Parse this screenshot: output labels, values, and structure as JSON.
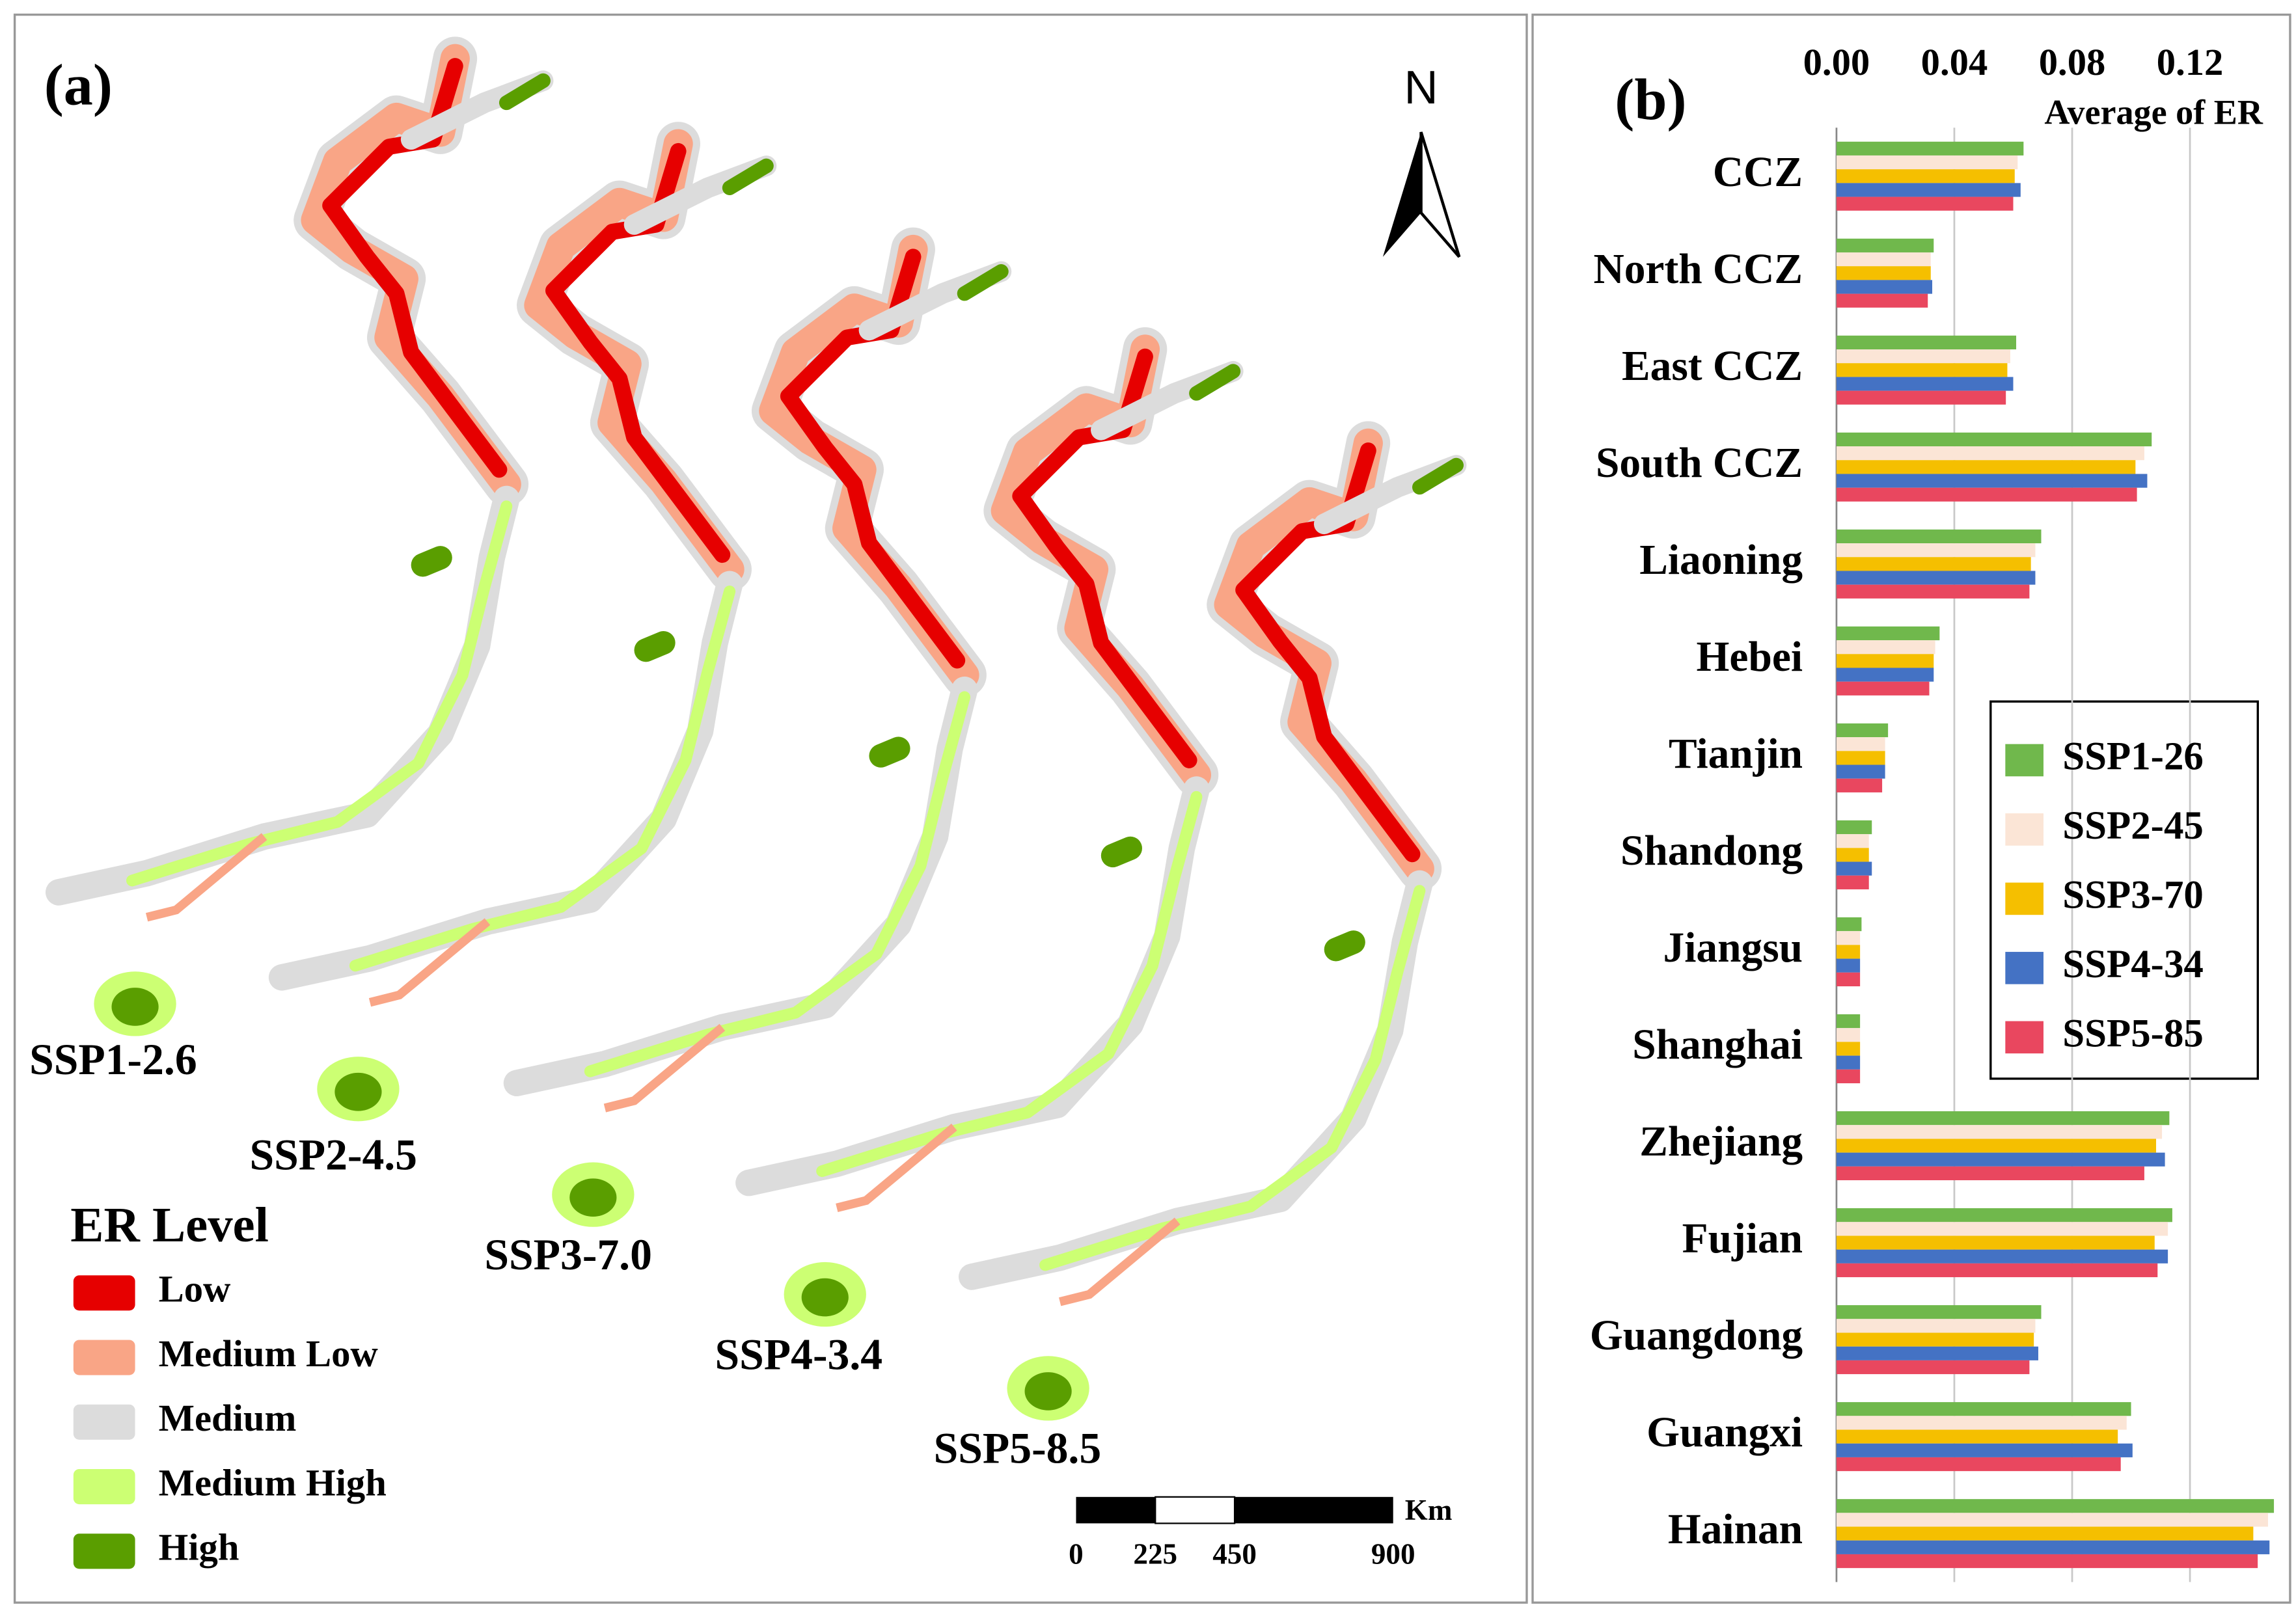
{
  "map": {
    "panel_label": "(a)",
    "north": "N",
    "legend": {
      "title": "ER  Level",
      "items": [
        {
          "label": "Low",
          "color": "#e60000"
        },
        {
          "label": "Medium Low",
          "color": "#f9a586"
        },
        {
          "label": "Medium",
          "color": "#dcdcdc"
        },
        {
          "label": "Medium High",
          "color": "#ccff73"
        },
        {
          "label": "High",
          "color": "#5a9e00"
        }
      ]
    },
    "scenarios": [
      "SSP1-2.6",
      "SSP2-4.5",
      "SSP3-7.0",
      "SSP4-3.4",
      "SSP5-8.5"
    ],
    "scale_bar": {
      "unit": "Km",
      "labels": [
        "0",
        "225",
        "450",
        "900"
      ]
    }
  },
  "chart_data": {
    "type": "hbar",
    "title": "(b)",
    "x_label": "Average of ER",
    "categories": [
      "CCZ",
      "North CCZ",
      "East CCZ",
      "South CCZ",
      "Liaoning",
      "Hebei",
      "Tianjin",
      "Shandong",
      "Jiangsu",
      "Shanghai",
      "Zhejiang",
      "Fujian",
      "Guangdong",
      "Guangxi",
      "Hainan"
    ],
    "series": [
      {
        "name": "SSP1-26",
        "color": "#70b84c",
        "values": [
          0.0635,
          0.033,
          0.061,
          0.107,
          0.0695,
          0.035,
          0.0175,
          0.012,
          0.0085,
          0.008,
          0.113,
          0.114,
          0.0695,
          0.1,
          0.1485
        ]
      },
      {
        "name": "SSP2-45",
        "color": "#fbe5d6",
        "values": [
          0.0615,
          0.032,
          0.059,
          0.1045,
          0.0675,
          0.0335,
          0.0165,
          0.011,
          0.008,
          0.008,
          0.1105,
          0.1125,
          0.0675,
          0.0985,
          0.1465
        ]
      },
      {
        "name": "SSP3-70",
        "color": "#f5bf00",
        "values": [
          0.0605,
          0.032,
          0.058,
          0.1015,
          0.066,
          0.033,
          0.0165,
          0.011,
          0.008,
          0.008,
          0.1085,
          0.108,
          0.067,
          0.0955,
          0.1415
        ]
      },
      {
        "name": "SSP4-34",
        "color": "#4472c4",
        "values": [
          0.0625,
          0.0325,
          0.06,
          0.1055,
          0.0675,
          0.033,
          0.0165,
          0.012,
          0.008,
          0.008,
          0.1115,
          0.1125,
          0.0685,
          0.1005,
          0.147
        ]
      },
      {
        "name": "SSP5-85",
        "color": "#e9475f",
        "values": [
          0.06,
          0.031,
          0.0575,
          0.102,
          0.0655,
          0.0315,
          0.0155,
          0.011,
          0.008,
          0.008,
          0.1045,
          0.109,
          0.0655,
          0.0965,
          0.143
        ]
      }
    ],
    "xlim": [
      0,
      0.152
    ],
    "xticks": [
      {
        "value": 0,
        "label": "0.00"
      },
      0.04,
      0.08,
      0.12
    ],
    "grid": true
  }
}
